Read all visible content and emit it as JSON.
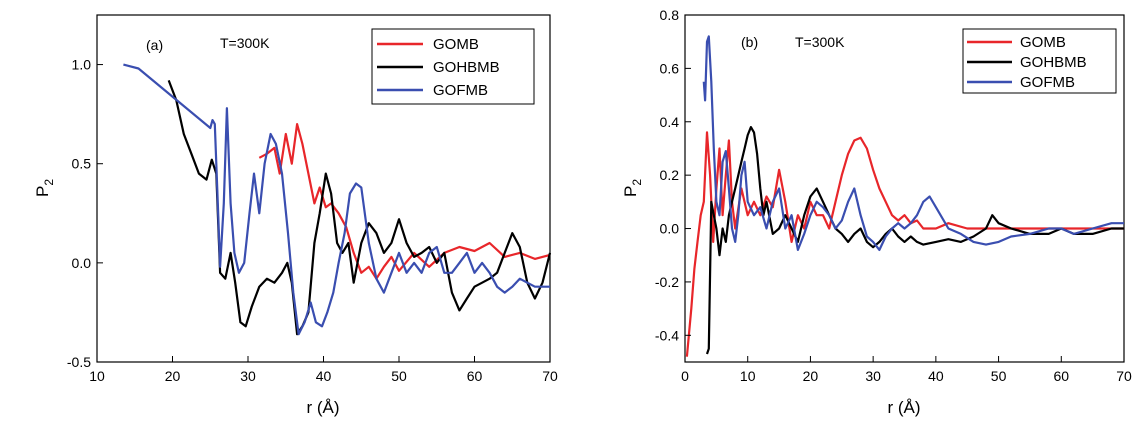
{
  "chart_data": [
    {
      "type": "line",
      "panel_label": "(a)",
      "annotation": "T=300K",
      "xlabel": "r (Å)",
      "ylabel_main": "P",
      "ylabel_sub": "2",
      "xlim": [
        10,
        70
      ],
      "ylim": [
        -0.5,
        1.25
      ],
      "xticks": [
        10,
        20,
        30,
        40,
        50,
        60,
        70
      ],
      "xtick_labels": [
        "10",
        "20",
        "30",
        "40",
        "50",
        "60",
        "70"
      ],
      "yticks": [
        -0.5,
        0.0,
        0.5,
        1.0
      ],
      "ytick_labels": [
        "-0.5",
        "0.0",
        "0.5",
        "1.0"
      ],
      "grid": false,
      "legend_position": "top-right",
      "series": [
        {
          "name": "GOMB",
          "color": "#e8262a",
          "x": [
            31.5,
            32.5,
            33.5,
            34.2,
            35,
            35.8,
            36.5,
            37.2,
            38,
            38.8,
            39.5,
            40.3,
            41,
            42,
            43,
            44,
            45,
            46,
            47,
            48,
            49,
            50,
            52,
            54,
            56,
            58,
            60,
            62,
            64,
            66,
            68,
            70
          ],
          "y": [
            0.53,
            0.55,
            0.58,
            0.45,
            0.65,
            0.5,
            0.7,
            0.6,
            0.45,
            0.3,
            0.38,
            0.28,
            0.3,
            0.25,
            0.18,
            0.05,
            -0.05,
            -0.02,
            -0.08,
            -0.02,
            0.03,
            -0.04,
            0.05,
            -0.02,
            0.05,
            0.08,
            0.06,
            0.1,
            0.03,
            0.05,
            0.02,
            0.04
          ]
        },
        {
          "name": "GOHBMB",
          "color": "#000000",
          "x": [
            19.5,
            20.5,
            21.5,
            22.5,
            23.5,
            24.5,
            25.2,
            25.8,
            26.3,
            27,
            27.7,
            28.3,
            29,
            29.7,
            30.5,
            31.5,
            32.5,
            33.5,
            34.5,
            35.2,
            35.8,
            36.5,
            37.2,
            38,
            38.8,
            39.5,
            40.3,
            41,
            41.8,
            42.5,
            43.3,
            44,
            45,
            46,
            47,
            48,
            49,
            50,
            51,
            52,
            53,
            54,
            55,
            56,
            57,
            58,
            59,
            60,
            61,
            62,
            63,
            64,
            65,
            66,
            67,
            68,
            69,
            70
          ],
          "y": [
            0.92,
            0.82,
            0.65,
            0.55,
            0.45,
            0.42,
            0.52,
            0.45,
            -0.05,
            -0.08,
            0.05,
            -0.1,
            -0.3,
            -0.32,
            -0.22,
            -0.12,
            -0.08,
            -0.1,
            -0.05,
            0.0,
            -0.1,
            -0.36,
            -0.32,
            -0.25,
            0.1,
            0.25,
            0.45,
            0.35,
            0.1,
            0.05,
            0.1,
            -0.1,
            0.1,
            0.2,
            0.15,
            0.05,
            0.1,
            0.22,
            0.1,
            0.03,
            0.05,
            0.08,
            0.0,
            0.05,
            -0.15,
            -0.24,
            -0.18,
            -0.12,
            -0.1,
            -0.08,
            -0.05,
            0.05,
            0.15,
            0.08,
            -0.1,
            -0.18,
            -0.1,
            0.05
          ]
        },
        {
          "name": "GOFMB",
          "color": "#3a4eb0",
          "x": [
            13.5,
            15.5,
            25.0,
            25.3,
            25.6,
            26.0,
            26.3,
            26.8,
            27.2,
            27.7,
            28.2,
            28.8,
            29.5,
            30.2,
            30.8,
            31.5,
            32.2,
            33,
            33.7,
            34.5,
            35.3,
            36,
            36.7,
            37.5,
            38.3,
            39,
            39.8,
            40.5,
            41.3,
            42,
            42.8,
            43.5,
            44.3,
            45,
            46,
            47,
            48,
            49,
            50,
            51,
            52,
            53,
            54,
            55,
            56,
            57,
            58,
            59,
            60,
            61,
            62,
            63,
            64,
            65,
            66,
            67,
            68,
            69,
            70
          ],
          "y": [
            1.0,
            0.98,
            0.68,
            0.72,
            0.7,
            0.3,
            -0.02,
            0.3,
            0.78,
            0.3,
            0.05,
            -0.05,
            0.0,
            0.25,
            0.45,
            0.25,
            0.5,
            0.65,
            0.6,
            0.45,
            0.15,
            -0.15,
            -0.36,
            -0.3,
            -0.2,
            -0.3,
            -0.32,
            -0.25,
            -0.15,
            0.0,
            0.15,
            0.35,
            0.4,
            0.38,
            0.1,
            -0.08,
            -0.15,
            -0.05,
            0.05,
            -0.05,
            0.0,
            -0.05,
            0.05,
            0.08,
            -0.05,
            -0.05,
            0.0,
            0.05,
            -0.05,
            0.0,
            -0.05,
            -0.12,
            -0.15,
            -0.12,
            -0.08,
            -0.1,
            -0.12,
            -0.12,
            -0.12
          ]
        }
      ]
    },
    {
      "type": "line",
      "panel_label": "(b)",
      "annotation": "T=300K",
      "xlabel": "r (Å)",
      "ylabel_main": "P",
      "ylabel_sub": "2",
      "xlim": [
        0,
        70
      ],
      "ylim": [
        -0.5,
        0.8
      ],
      "xticks": [
        0,
        10,
        20,
        30,
        40,
        50,
        60,
        70
      ],
      "xtick_labels": [
        "0",
        "10",
        "20",
        "30",
        "40",
        "50",
        "60",
        "70"
      ],
      "yticks": [
        -0.4,
        -0.2,
        0.0,
        0.2,
        0.4,
        0.6,
        0.8
      ],
      "ytick_labels": [
        "-0.4",
        "-0.2",
        "0.0",
        "0.2",
        "0.4",
        "0.6",
        "0.8"
      ],
      "grid": false,
      "legend_position": "top-right",
      "series": [
        {
          "name": "GOMB",
          "color": "#e8262a",
          "x": [
            0.3,
            1,
            1.5,
            2,
            2.5,
            3,
            3.5,
            4,
            4.5,
            5,
            5.5,
            6,
            6.5,
            7,
            7.5,
            8,
            9,
            10,
            11,
            12,
            13,
            14,
            15,
            16,
            17,
            18,
            19,
            20,
            21,
            22,
            23,
            24,
            25,
            26,
            27,
            28,
            29,
            30,
            31,
            32,
            33,
            34,
            35,
            36,
            37,
            38,
            40,
            42,
            45,
            50,
            55,
            60,
            65,
            70
          ],
          "y": [
            -0.48,
            -0.3,
            -0.15,
            -0.05,
            0.05,
            0.1,
            0.36,
            0.2,
            -0.05,
            0.15,
            0.3,
            0.05,
            0.2,
            0.33,
            0.1,
            0.0,
            0.15,
            0.05,
            0.1,
            0.05,
            0.12,
            0.08,
            0.22,
            0.1,
            -0.05,
            0.05,
            0.0,
            0.1,
            0.05,
            0.05,
            0.0,
            0.1,
            0.2,
            0.28,
            0.33,
            0.34,
            0.3,
            0.22,
            0.15,
            0.1,
            0.05,
            0.03,
            0.05,
            0.02,
            0.03,
            0.0,
            0.0,
            0.02,
            0.0,
            0.0,
            0.0,
            0.0,
            0.0,
            0.0
          ]
        },
        {
          "name": "GOHBMB",
          "color": "#000000",
          "x": [
            3.5,
            3.8,
            4.2,
            4.6,
            5,
            5.5,
            6,
            6.5,
            7,
            7.5,
            8,
            8.5,
            9,
            9.5,
            10,
            10.5,
            11,
            11.5,
            12,
            12.5,
            13,
            14,
            15,
            16,
            17,
            18,
            19,
            20,
            21,
            22,
            23,
            24,
            25,
            26,
            27,
            28,
            29,
            30,
            31,
            32,
            33,
            34,
            35,
            36,
            37,
            38,
            40,
            42,
            44,
            46,
            48,
            49,
            50,
            52,
            55,
            58,
            60,
            62,
            65,
            68,
            70
          ],
          "y": [
            -0.47,
            -0.45,
            0.1,
            0.05,
            0.0,
            -0.1,
            0.0,
            -0.05,
            0.05,
            0.1,
            0.15,
            0.2,
            0.25,
            0.3,
            0.35,
            0.38,
            0.36,
            0.28,
            0.15,
            0.05,
            0.1,
            -0.02,
            0.0,
            0.05,
            0.0,
            -0.05,
            0.05,
            0.12,
            0.15,
            0.1,
            0.05,
            0.0,
            -0.02,
            -0.05,
            -0.02,
            0.0,
            -0.05,
            -0.07,
            -0.05,
            -0.02,
            0.0,
            -0.03,
            -0.05,
            -0.03,
            -0.05,
            -0.06,
            -0.05,
            -0.04,
            -0.05,
            -0.03,
            0.0,
            0.05,
            0.02,
            0.0,
            -0.02,
            -0.02,
            0.0,
            -0.02,
            -0.02,
            0.0,
            0.0
          ]
        },
        {
          "name": "GOFMB",
          "color": "#3a4eb0",
          "x": [
            3.0,
            3.2,
            3.5,
            3.8,
            4.2,
            4.6,
            5.0,
            5.5,
            6.0,
            6.5,
            7.0,
            7.5,
            8,
            8.5,
            9,
            9.5,
            10,
            11,
            12,
            13,
            14,
            15,
            16,
            17,
            18,
            19,
            20,
            21,
            22,
            23,
            24,
            25,
            26,
            27,
            28,
            29,
            30,
            31,
            32,
            33,
            34,
            35,
            36,
            37,
            38,
            39,
            40,
            42,
            44,
            46,
            48,
            50,
            52,
            55,
            58,
            60,
            62,
            65,
            68,
            70
          ],
          "y": [
            0.55,
            0.48,
            0.7,
            0.72,
            0.55,
            0.3,
            0.1,
            0.05,
            0.25,
            0.29,
            0.15,
            0.0,
            -0.05,
            0.05,
            0.2,
            0.25,
            0.1,
            0.05,
            0.08,
            0.0,
            0.1,
            0.15,
            0.0,
            0.05,
            -0.08,
            -0.02,
            0.05,
            0.1,
            0.08,
            0.05,
            0.0,
            0.03,
            0.1,
            0.15,
            0.05,
            -0.03,
            -0.05,
            -0.08,
            -0.03,
            0.0,
            0.02,
            0.0,
            0.02,
            0.05,
            0.1,
            0.12,
            0.08,
            0.0,
            -0.02,
            -0.05,
            -0.06,
            -0.05,
            -0.03,
            -0.02,
            0.0,
            0.0,
            -0.02,
            0.0,
            0.02,
            0.02
          ]
        }
      ]
    }
  ]
}
